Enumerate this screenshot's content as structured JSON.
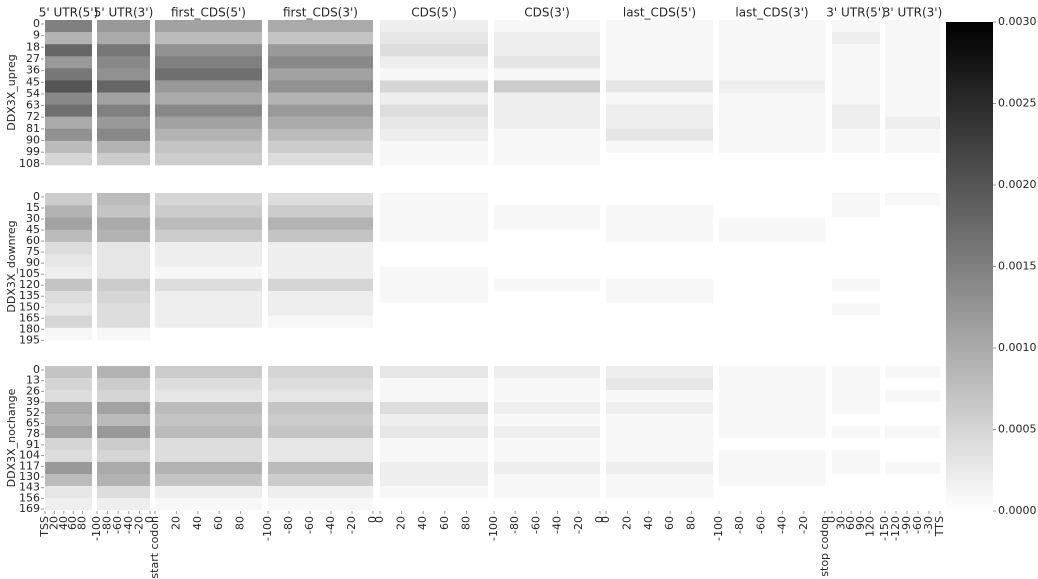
{
  "chart_data": {
    "type": "heatmap",
    "color_low": "#ffffff",
    "color_high": "#000000",
    "columns": [
      {
        "title": "5' UTR(5')",
        "xlim": [
          0,
          100
        ],
        "xticks": [
          {
            "value": 0,
            "label": "TSS"
          },
          20,
          40,
          60,
          80
        ]
      },
      {
        "title": "5' UTR(3')",
        "xlim": [
          -100,
          0
        ],
        "xticks": [
          -100,
          -80,
          -60,
          -40,
          -20,
          0
        ]
      },
      {
        "title": "first_CDS(5')",
        "xlim": [
          0,
          100
        ],
        "xticks": [
          {
            "value": 0,
            "label": "start codon"
          },
          20,
          40,
          60,
          80
        ]
      },
      {
        "title": "first_CDS(3')",
        "xlim": [
          -100,
          0
        ],
        "xticks": [
          -100,
          -80,
          -60,
          -40,
          -20,
          0
        ]
      },
      {
        "title": "CDS(5')",
        "xlim": [
          0,
          100
        ],
        "xticks": [
          0,
          20,
          40,
          60,
          80
        ]
      },
      {
        "title": "CDS(3')",
        "xlim": [
          -100,
          0
        ],
        "xticks": [
          -100,
          -80,
          -60,
          -40,
          -20,
          0
        ]
      },
      {
        "title": "last_CDS(5')",
        "xlim": [
          0,
          100
        ],
        "xticks": [
          0,
          20,
          40,
          60,
          80
        ]
      },
      {
        "title": "last_CDS(3')",
        "xlim": [
          -100,
          0
        ],
        "xticks": [
          -100,
          -80,
          -60,
          -40,
          -20,
          {
            "value": 0,
            "label": "stop codon"
          }
        ]
      },
      {
        "title": "3' UTR(5')",
        "xlim": [
          0,
          150
        ],
        "xticks": [
          0,
          30,
          60,
          90,
          120
        ]
      },
      {
        "title": "3' UTR(3')",
        "xlim": [
          -150,
          0
        ],
        "xticks": [
          -150,
          -120,
          -90,
          -60,
          -30,
          {
            "value": 0,
            "label": "TTS"
          }
        ]
      }
    ],
    "groups": [
      {
        "name": "DDX3X_upreg",
        "ylim": [
          0,
          112
        ],
        "yticks": [
          0,
          9,
          18,
          27,
          36,
          45,
          54,
          63,
          72,
          81,
          90,
          99,
          108
        ],
        "values": [
          [
            0.0015,
            0.0009,
            0.0018,
            0.0012,
            0.0016,
            0.002,
            0.0014,
            0.0017,
            0.001,
            0.0013,
            0.0008,
            0.0005
          ],
          [
            0.0012,
            0.001,
            0.0016,
            0.0014,
            0.0013,
            0.0018,
            0.0011,
            0.0015,
            0.0012,
            0.0014,
            0.0009,
            0.0006
          ],
          [
            0.0011,
            0.0008,
            0.0013,
            0.0015,
            0.0017,
            0.0012,
            0.001,
            0.0014,
            0.0011,
            0.0009,
            0.0007,
            0.0006
          ],
          [
            0.001,
            0.0007,
            0.0012,
            0.0014,
            0.0011,
            0.0013,
            0.0009,
            0.0012,
            0.001,
            0.0008,
            0.0006,
            0.0004
          ],
          [
            0.0002,
            0.0003,
            0.0004,
            0.0002,
            0.0001,
            0.0005,
            0.0002,
            0.0004,
            0.0003,
            0.0002,
            0.0001,
            0.0001
          ],
          [
            0.0001,
            0.0002,
            0.0002,
            0.0003,
            0.0001,
            0.0006,
            0.0002,
            0.0002,
            0.0002,
            0.0001,
            0.0001,
            0.0001
          ],
          [
            0.0001,
            0.0001,
            0.0001,
            0.0001,
            0.0001,
            0.0003,
            0.0001,
            0.0002,
            0.0002,
            0.0003,
            0.0001,
            0.0
          ],
          [
            0.0001,
            0.0001,
            0.0001,
            0.0001,
            0.0001,
            0.0002,
            0.0001,
            0.0001,
            0.0001,
            0.0001,
            0.0001,
            0.0
          ],
          [
            0.0001,
            0.0002,
            0.0001,
            0.0001,
            0.0001,
            0.0001,
            0.0001,
            0.0002,
            0.0002,
            0.0001,
            0.0001,
            0.0
          ],
          [
            0.0001,
            0.0001,
            0.0001,
            0.0001,
            0.0001,
            0.0001,
            0.0001,
            0.0001,
            0.0002,
            0.0001,
            0.0001,
            0.0
          ]
        ]
      },
      {
        "name": "DDX3X_downreg",
        "ylim": [
          0,
          200
        ],
        "yticks": [
          0,
          15,
          30,
          45,
          60,
          75,
          90,
          105,
          120,
          135,
          150,
          165,
          180,
          195
        ],
        "values": [
          [
            0.0006,
            0.0009,
            0.0011,
            0.0008,
            0.0004,
            0.0003,
            0.0002,
            0.0007,
            0.0004,
            0.0003,
            0.0005,
            0.0001
          ],
          [
            0.0008,
            0.0007,
            0.001,
            0.0009,
            0.0003,
            0.0003,
            0.0003,
            0.0006,
            0.0005,
            0.0004,
            0.0004,
            0.0001
          ],
          [
            0.0005,
            0.0006,
            0.0008,
            0.0006,
            0.0002,
            0.0002,
            0.0001,
            0.0004,
            0.0002,
            0.0002,
            0.0002,
            0.0
          ],
          [
            0.0004,
            0.0006,
            0.0009,
            0.0007,
            0.0002,
            0.0002,
            0.0002,
            0.0005,
            0.0002,
            0.0002,
            0.0001,
            0.0
          ],
          [
            0.0001,
            0.0001,
            0.0001,
            0.0001,
            0.0,
            0.0,
            0.0001,
            0.0001,
            0.0001,
            0.0,
            0.0,
            0.0
          ],
          [
            0.0,
            0.0001,
            0.0001,
            0.0,
            0.0,
            0.0,
            0.0,
            0.0001,
            0.0,
            0.0,
            0.0,
            0.0
          ],
          [
            0.0,
            0.0001,
            0.0001,
            0.0001,
            0.0,
            0.0,
            0.0,
            0.0001,
            0.0001,
            0.0,
            0.0,
            0.0
          ],
          [
            0.0,
            0.0,
            0.0001,
            0.0001,
            0.0,
            0.0,
            0.0,
            0.0,
            0.0,
            0.0,
            0.0,
            0.0
          ],
          [
            0.0001,
            0.0001,
            0.0,
            0.0,
            0.0,
            0.0,
            0.0,
            0.0001,
            0.0,
            0.0001,
            0.0,
            0.0
          ],
          [
            0.0001,
            0.0,
            0.0,
            0.0,
            0.0,
            0.0,
            0.0,
            0.0,
            0.0,
            0.0,
            0.0,
            0.0
          ]
        ]
      },
      {
        "name": "DDX3X_nochange",
        "ylim": [
          0,
          175
        ],
        "yticks": [
          0,
          13,
          26,
          39,
          52,
          65,
          78,
          91,
          104,
          117,
          130,
          143,
          156,
          169
        ],
        "values": [
          [
            0.0007,
            0.0005,
            0.0004,
            0.001,
            0.0009,
            0.0011,
            0.0005,
            0.0004,
            0.0012,
            0.0008,
            0.0003,
            0.0002
          ],
          [
            0.0009,
            0.0006,
            0.0005,
            0.0011,
            0.0008,
            0.0012,
            0.0006,
            0.0005,
            0.001,
            0.0009,
            0.0004,
            0.0002
          ],
          [
            0.0006,
            0.0004,
            0.0003,
            0.0008,
            0.0007,
            0.0008,
            0.0004,
            0.0004,
            0.0009,
            0.0007,
            0.0002,
            0.0001
          ],
          [
            0.0005,
            0.0004,
            0.0003,
            0.0007,
            0.0006,
            0.0007,
            0.0003,
            0.0003,
            0.0008,
            0.0006,
            0.0002,
            0.0001
          ],
          [
            0.0003,
            0.0001,
            0.0001,
            0.0004,
            0.0002,
            0.0003,
            0.0001,
            0.0001,
            0.0002,
            0.0002,
            0.0001,
            0.0
          ],
          [
            0.0002,
            0.0001,
            0.0001,
            0.0002,
            0.0001,
            0.0002,
            0.0001,
            0.0001,
            0.0002,
            0.0001,
            0.0001,
            0.0
          ],
          [
            0.0002,
            0.0003,
            0.0001,
            0.0002,
            0.0001,
            0.0001,
            0.0001,
            0.0001,
            0.0002,
            0.0001,
            0.0001,
            0.0
          ],
          [
            0.0001,
            0.0001,
            0.0001,
            0.0001,
            0.0001,
            0.0001,
            0.0,
            0.0001,
            0.0001,
            0.0001,
            0.0,
            0.0
          ],
          [
            0.0001,
            0.0001,
            0.0001,
            0.0001,
            0.0,
            0.0001,
            0.0,
            0.0001,
            0.0001,
            0.0,
            0.0,
            0.0
          ],
          [
            0.0001,
            0.0,
            0.0001,
            0.0,
            0.0,
            0.0001,
            0.0,
            0.0,
            0.0001,
            0.0,
            0.0,
            0.0
          ]
        ]
      }
    ],
    "colorbar": {
      "lim": [
        0,
        0.003
      ],
      "ticks": [
        {
          "value": 0,
          "label": "0.0000"
        },
        {
          "value": 0.0005,
          "label": "0.0005"
        },
        {
          "value": 0.001,
          "label": "0.0010"
        },
        {
          "value": 0.0015,
          "label": "0.0015"
        },
        {
          "value": 0.002,
          "label": "0.0020"
        },
        {
          "value": 0.0025,
          "label": "0.0025"
        },
        {
          "value": 0.003,
          "label": "0.0030"
        }
      ]
    }
  }
}
